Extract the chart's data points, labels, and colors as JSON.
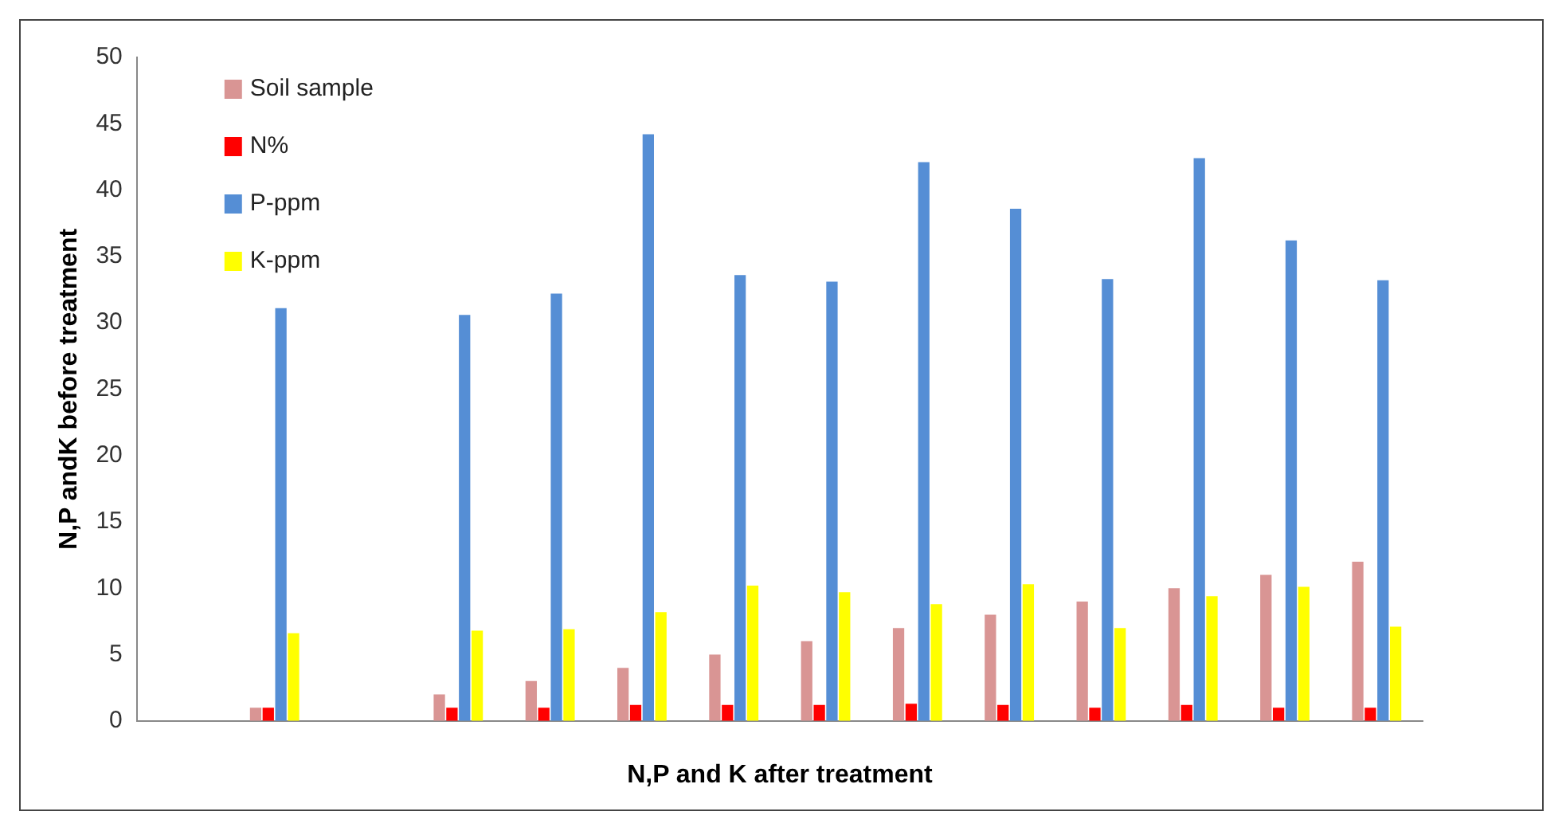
{
  "chart_data": {
    "type": "bar",
    "xlabel": "N,P and K after treatment",
    "ylabel": "N,P andK before treatment",
    "categories": [
      null,
      null,
      null,
      null,
      null,
      null,
      null,
      null,
      null,
      null,
      null,
      null,
      null,
      null
    ],
    "series": [
      {
        "name": "Soil sample",
        "color": "#d99594",
        "values": [
          null,
          1,
          null,
          2,
          3,
          4,
          5,
          6,
          7,
          8,
          9,
          10,
          11,
          12
        ]
      },
      {
        "name": "N%",
        "color": "#ff0000",
        "values": [
          null,
          1,
          null,
          1,
          1,
          1.2,
          1.2,
          1.2,
          1.3,
          1.2,
          1,
          1.2,
          1,
          1
        ]
      },
      {
        "name": "P-ppm",
        "color": "#558ed5",
        "values": [
          null,
          31.1,
          null,
          30.6,
          32.2,
          44.2,
          33.6,
          33.1,
          42.1,
          38.6,
          33.3,
          42.4,
          36.2,
          33.2
        ]
      },
      {
        "name": "K-ppm",
        "color": "#ffff00",
        "values": [
          null,
          6.6,
          null,
          6.8,
          6.9,
          8.2,
          10.2,
          9.7,
          8.8,
          10.3,
          7.0,
          9.4,
          10.1,
          7.1
        ]
      }
    ],
    "ylim": [
      0,
      50
    ],
    "yticks": [
      0,
      5,
      10,
      15,
      20,
      25,
      30,
      35,
      40,
      45,
      50
    ],
    "grid": false,
    "legend": "top left"
  }
}
